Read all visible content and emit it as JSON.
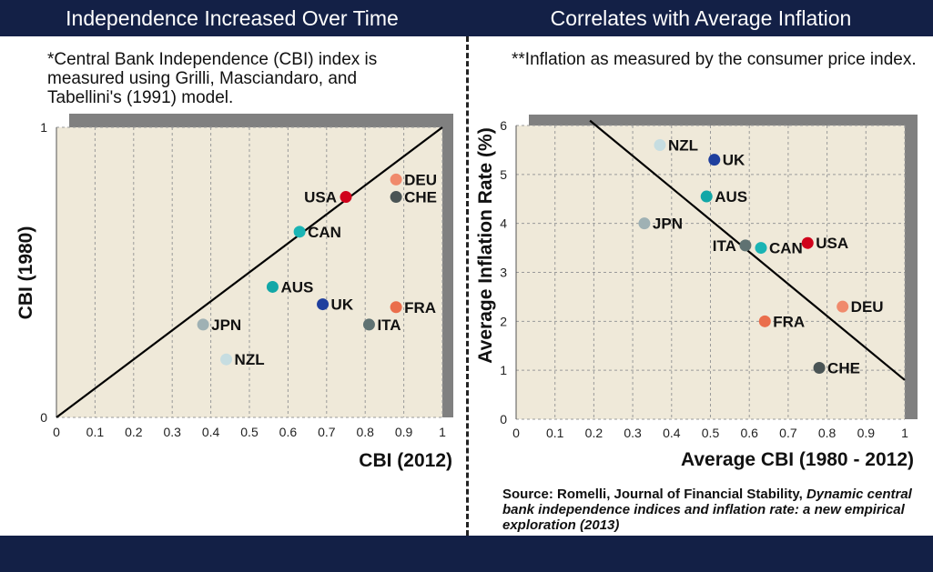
{
  "header": {
    "left_title": "Independence Increased Over Time",
    "right_title": "Correlates with Average Inflation"
  },
  "notes": {
    "left": "*Central Bank Independence (CBI) index is measured using Grilli, Masciandaro, and Tabellini's (1991) model.",
    "right": "**Inflation as measured by the consumer price index."
  },
  "source": {
    "prefix": "Source: Romelli, Journal of Financial Stability, ",
    "italic": "Dynamic central bank independence indices and inflation rate: a new empirical exploration (2013)"
  },
  "colors": {
    "plot_bg": "#efe9d9",
    "shadow": "#808080",
    "grid": "#9a9a9a",
    "line": "#000000",
    "header": "#132046"
  },
  "chart_data": [
    {
      "type": "scatter",
      "xlabel": "CBI (2012)",
      "ylabel": "CBI (1980)",
      "xlim": [
        0,
        1
      ],
      "ylim": [
        0,
        1
      ],
      "xticks": [
        "0",
        "0.1",
        "0.2",
        "0.3",
        "0.4",
        "0.5",
        "0.6",
        "0.7",
        "0.8",
        "0.9",
        "1"
      ],
      "yticks": [
        "0",
        "1"
      ],
      "reference_line": {
        "from": [
          0,
          0
        ],
        "to": [
          1,
          1
        ]
      },
      "grid": true,
      "points": [
        {
          "label": "USA",
          "x": 0.75,
          "y": 0.76,
          "color": "#d0021b",
          "label_side": "left"
        },
        {
          "label": "DEU",
          "x": 0.88,
          "y": 0.82,
          "color": "#f08a6c",
          "label_side": "right"
        },
        {
          "label": "CHE",
          "x": 0.88,
          "y": 0.76,
          "color": "#4a5455",
          "label_side": "right"
        },
        {
          "label": "CAN",
          "x": 0.63,
          "y": 0.64,
          "color": "#1ab4b4",
          "label_side": "right"
        },
        {
          "label": "AUS",
          "x": 0.56,
          "y": 0.45,
          "color": "#12a7a7",
          "label_side": "right"
        },
        {
          "label": "UK",
          "x": 0.69,
          "y": 0.39,
          "color": "#1f3f9e",
          "label_side": "right"
        },
        {
          "label": "FRA",
          "x": 0.88,
          "y": 0.38,
          "color": "#ea6e4c",
          "label_side": "right"
        },
        {
          "label": "ITA",
          "x": 0.81,
          "y": 0.32,
          "color": "#5f7272",
          "label_side": "right"
        },
        {
          "label": "JPN",
          "x": 0.38,
          "y": 0.32,
          "color": "#9fb1b4",
          "label_side": "right"
        },
        {
          "label": "NZL",
          "x": 0.44,
          "y": 0.2,
          "color": "#c6dde1",
          "label_side": "right"
        }
      ]
    },
    {
      "type": "scatter",
      "xlabel": "Average CBI (1980 - 2012)",
      "ylabel": "Average Inflation Rate (%)",
      "xlim": [
        0,
        1
      ],
      "ylim": [
        0,
        6
      ],
      "xticks": [
        "0",
        "0.1",
        "0.2",
        "0.3",
        "0.4",
        "0.5",
        "0.6",
        "0.7",
        "0.8",
        "0.9",
        "1"
      ],
      "yticks": [
        "0",
        "1",
        "2",
        "3",
        "4",
        "5",
        "6"
      ],
      "trend_line": {
        "from": [
          0.19,
          6.1
        ],
        "to": [
          1,
          0.8
        ]
      },
      "grid": true,
      "points": [
        {
          "label": "NZL",
          "x": 0.37,
          "y": 5.6,
          "color": "#c6dde1",
          "label_side": "right"
        },
        {
          "label": "UK",
          "x": 0.51,
          "y": 5.3,
          "color": "#1f3f9e",
          "label_side": "right"
        },
        {
          "label": "AUS",
          "x": 0.49,
          "y": 4.55,
          "color": "#12a7a7",
          "label_side": "right"
        },
        {
          "label": "JPN",
          "x": 0.33,
          "y": 4.0,
          "color": "#9fb1b4",
          "label_side": "right"
        },
        {
          "label": "ITA",
          "x": 0.59,
          "y": 3.55,
          "color": "#5f7272",
          "label_side": "left"
        },
        {
          "label": "CAN",
          "x": 0.63,
          "y": 3.5,
          "color": "#1ab4b4",
          "label_side": "right"
        },
        {
          "label": "USA",
          "x": 0.75,
          "y": 3.6,
          "color": "#d0021b",
          "label_side": "right"
        },
        {
          "label": "DEU",
          "x": 0.84,
          "y": 2.3,
          "color": "#f08a6c",
          "label_side": "right"
        },
        {
          "label": "FRA",
          "x": 0.64,
          "y": 2.0,
          "color": "#ea6e4c",
          "label_side": "right"
        },
        {
          "label": "CHE",
          "x": 0.78,
          "y": 1.05,
          "color": "#4a5455",
          "label_side": "right"
        }
      ]
    }
  ]
}
